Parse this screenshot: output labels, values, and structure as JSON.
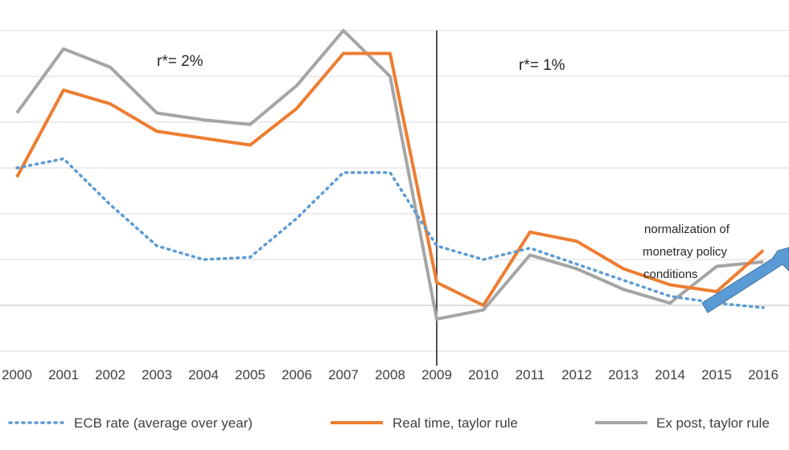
{
  "chart_data": {
    "type": "line",
    "title": "",
    "xlabel": "",
    "ylabel": "",
    "x": [
      "2000",
      "2001",
      "2002",
      "2003",
      "2004",
      "2005",
      "2006",
      "2007",
      "2008",
      "2009",
      "2010",
      "2011",
      "2012",
      "2013",
      "2014",
      "2015",
      "2016"
    ],
    "ylim": [
      -1,
      6
    ],
    "grid": true,
    "legend_position": "bottom",
    "series": [
      {
        "name": "ECB rate (average over year)",
        "style": "dotted",
        "color": "#5b9bd5",
        "values": [
          3.0,
          3.2,
          2.2,
          1.3,
          1.0,
          1.05,
          1.9,
          2.9,
          2.9,
          1.3,
          1.0,
          1.25,
          0.9,
          0.55,
          0.2,
          0.05,
          -0.05
        ]
      },
      {
        "name": "Real time, taylor rule",
        "style": "solid",
        "color": "#ed7d31",
        "values": [
          2.8,
          4.7,
          4.4,
          3.8,
          3.65,
          3.5,
          4.3,
          5.5,
          5.5,
          0.5,
          0.0,
          1.6,
          1.4,
          0.8,
          0.45,
          0.3,
          1.2
        ]
      },
      {
        "name": "Ex post, taylor rule",
        "style": "solid",
        "color": "#a5a5a5",
        "values": [
          4.2,
          5.6,
          5.2,
          4.2,
          4.05,
          3.95,
          4.8,
          6.0,
          5.0,
          -0.3,
          -0.1,
          1.1,
          0.8,
          0.35,
          0.05,
          0.85,
          0.95
        ]
      }
    ],
    "annotations": [
      {
        "text": "r*= 2%",
        "x": "2004"
      },
      {
        "text": "r*= 1%",
        "x": "2012"
      },
      {
        "text": "normalization of monetray policy conditions",
        "lines": [
          "normalization of",
          "monetray policy",
          "conditions"
        ]
      }
    ],
    "vertical_line_at": "2009"
  }
}
